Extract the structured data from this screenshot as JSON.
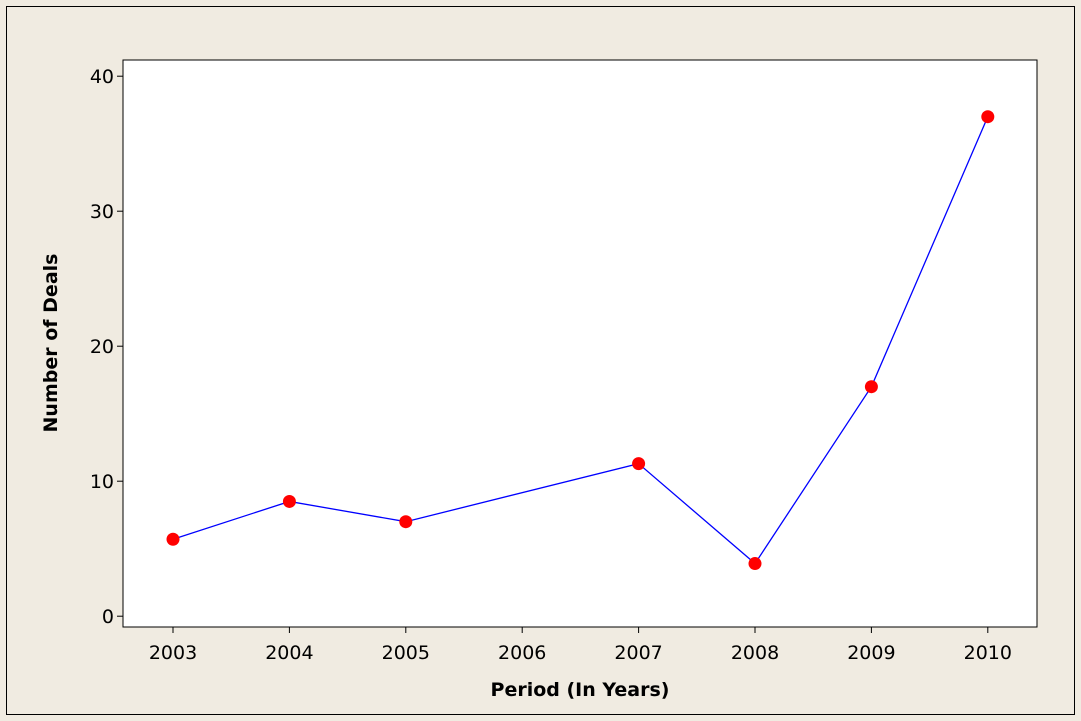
{
  "chart_data": {
    "type": "line",
    "categories": [
      "2003",
      "2004",
      "2005",
      "2006",
      "2007",
      "2008",
      "2009",
      "2010"
    ],
    "series": [
      {
        "x": [
          "2003",
          "2004",
          "2005",
          "2007",
          "2008",
          "2009",
          "2010"
        ],
        "values": [
          5.7,
          8.5,
          7.0,
          11.3,
          3.9,
          17.0,
          37.0
        ]
      }
    ],
    "xlabel": "Period (In Years)",
    "ylabel": "Number of Deals",
    "ylim": [
      -0.8,
      41.2
    ],
    "yticks": [
      0,
      10,
      20,
      30,
      40
    ],
    "grid": false,
    "colors": {
      "line": "#0000ff",
      "marker": "#ff0000",
      "plot_background": "#ffffff",
      "figure_background": "#f0ebe1"
    }
  }
}
